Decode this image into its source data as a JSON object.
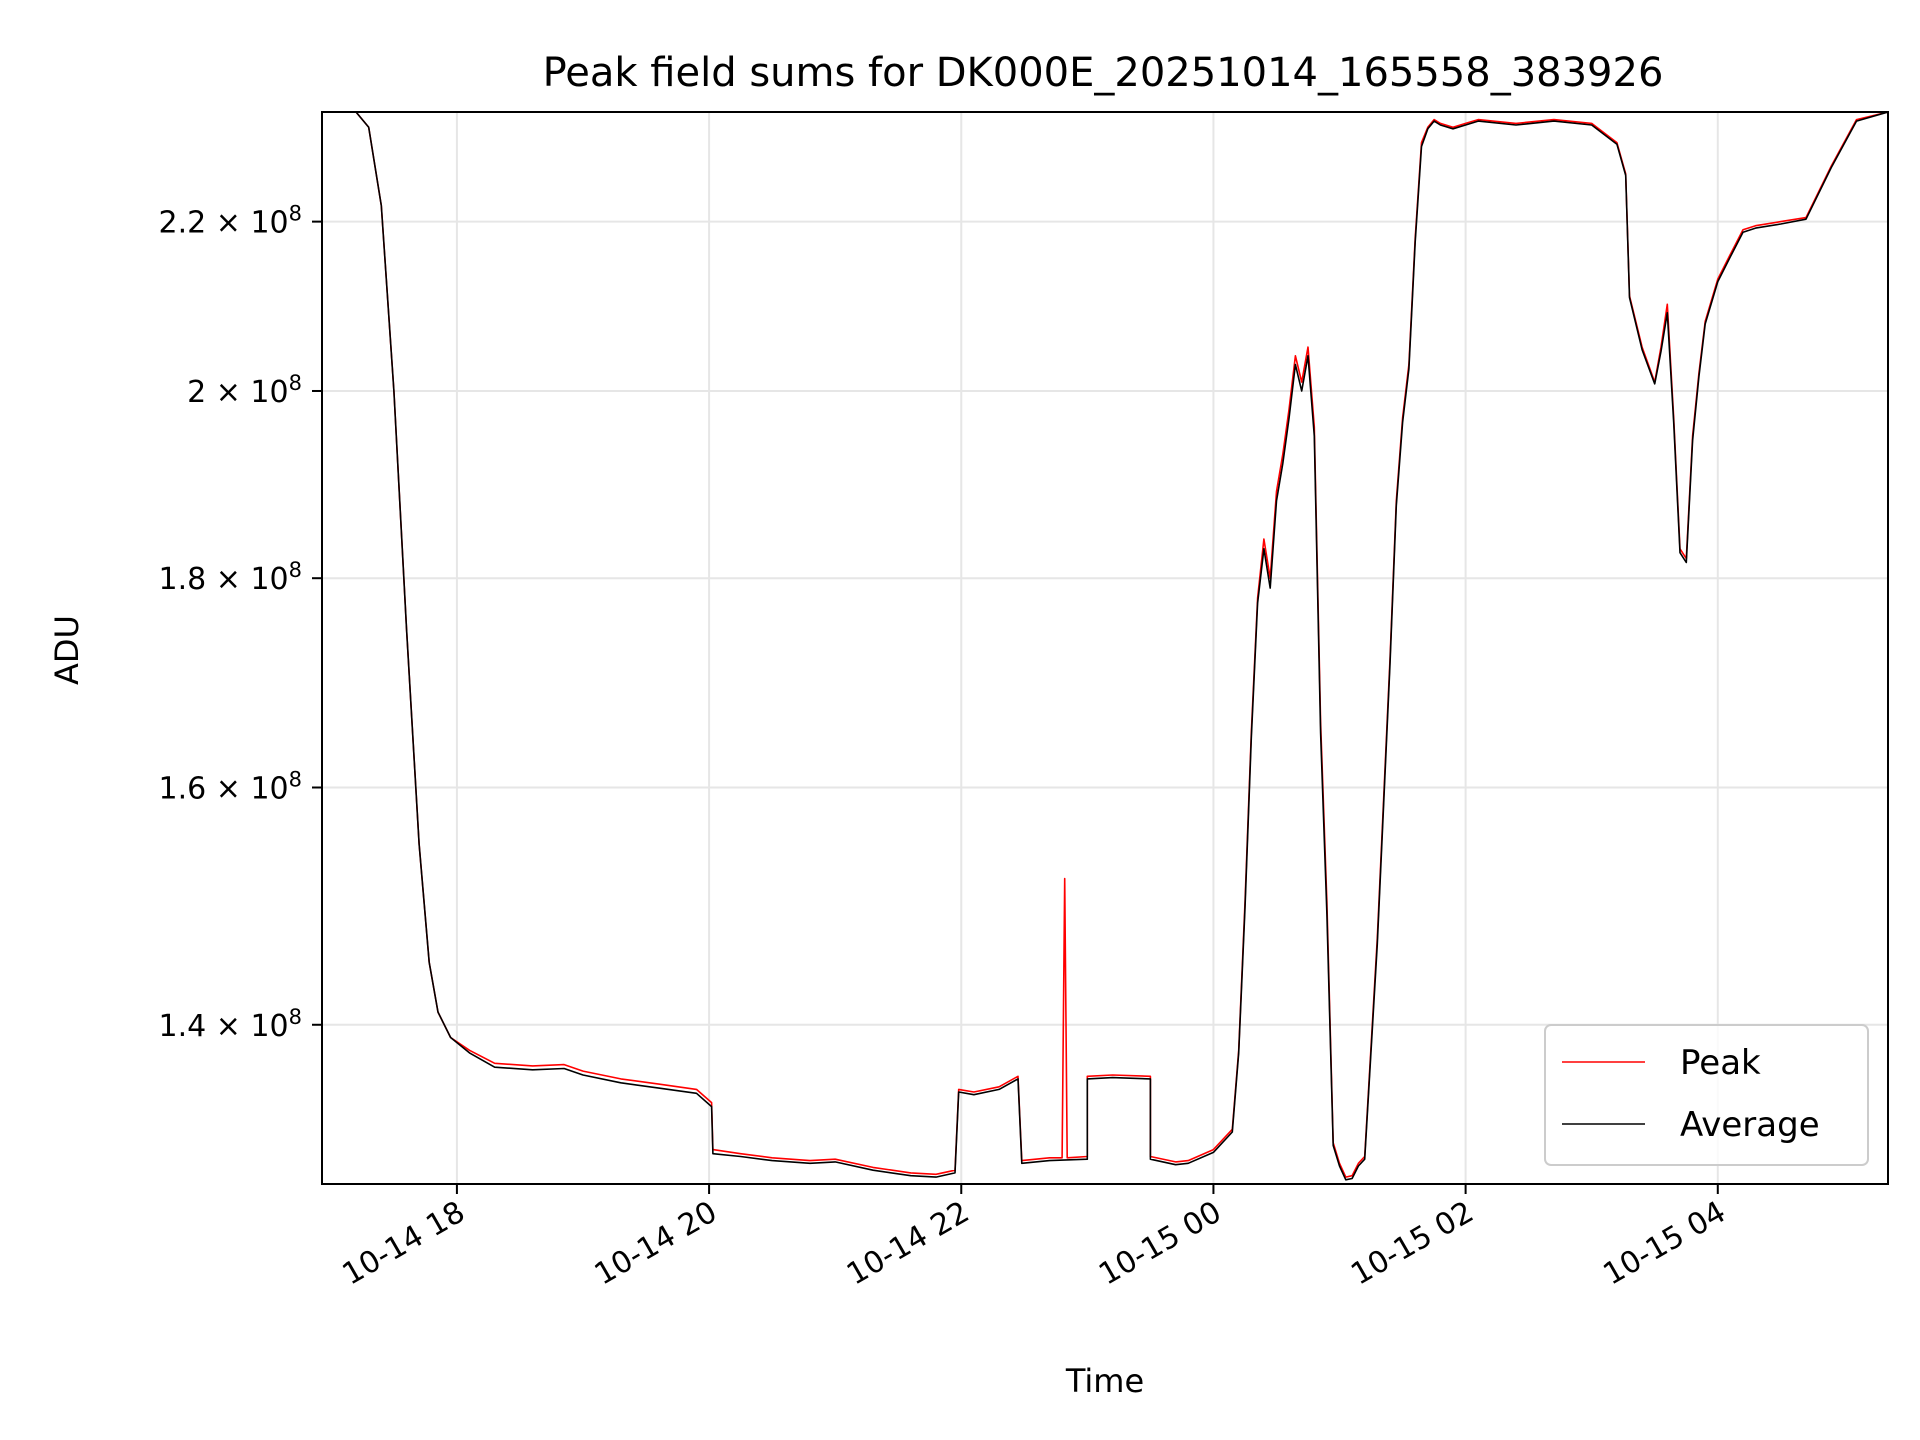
{
  "chart_data": {
    "type": "line",
    "title": "Peak field sums for DK000E_20251014_165558_383926",
    "xlabel": "Time",
    "ylabel": "ADU",
    "yscale": "log",
    "xlim": [
      16.93,
      29.35
    ],
    "ylim": [
      128000000,
      234000000
    ],
    "grid": true,
    "legend_position": "lower right",
    "x_tick_hours": [
      18,
      20,
      22,
      24,
      26,
      28
    ],
    "x_tick_labels": [
      "10-14 18",
      "10-14 20",
      "10-14 22",
      "10-15 00",
      "10-15 02",
      "10-15 04"
    ],
    "y_ticks": [
      140000000,
      160000000,
      180000000,
      200000000,
      220000000
    ],
    "y_tick_labels": [
      {
        "mantissa": "1.4",
        "exponent": "8"
      },
      {
        "mantissa": "1.6",
        "exponent": "8"
      },
      {
        "mantissa": "1.8",
        "exponent": "8"
      },
      {
        "mantissa": "2",
        "exponent": "8"
      },
      {
        "mantissa": "2.2",
        "exponent": "8"
      }
    ],
    "series": [
      {
        "name": "Peak",
        "color": "#ff0000",
        "x": [
          16.93,
          17.2,
          17.3,
          17.4,
          17.5,
          17.6,
          17.7,
          17.78,
          17.85,
          17.95,
          18.1,
          18.3,
          18.6,
          18.85,
          19.0,
          19.3,
          19.6,
          19.9,
          20.02,
          20.03,
          20.25,
          20.5,
          20.8,
          21.0,
          21.3,
          21.6,
          21.8,
          21.95,
          21.98,
          22.1,
          22.3,
          22.45,
          22.48,
          22.7,
          22.8,
          22.82,
          22.84,
          23.0,
          23.0,
          23.2,
          23.5,
          23.5,
          23.7,
          23.8,
          24.0,
          24.15,
          24.2,
          24.25,
          24.3,
          24.35,
          24.4,
          24.45,
          24.5,
          24.55,
          24.6,
          24.65,
          24.7,
          24.75,
          24.8,
          24.85,
          24.9,
          24.95,
          25.0,
          25.05,
          25.1,
          25.15,
          25.2,
          25.3,
          25.4,
          25.45,
          25.5,
          25.55,
          25.6,
          25.65,
          25.7,
          25.75,
          25.8,
          25.9,
          26.0,
          26.1,
          26.4,
          26.7,
          27.0,
          27.2,
          27.27,
          27.3,
          27.4,
          27.5,
          27.55,
          27.6,
          27.65,
          27.7,
          27.75,
          27.8,
          27.85,
          27.9,
          28.0,
          28.1,
          28.2,
          28.3,
          28.5,
          28.7,
          28.9,
          29.1,
          29.35
        ],
        "values": [
          234000000,
          234000000,
          232000000,
          222000000,
          200000000,
          175000000,
          155000000,
          145000000,
          141000000,
          139000000,
          138000000,
          137000000,
          136800000,
          136900000,
          136400000,
          135800000,
          135400000,
          135000000,
          134000000,
          130500000,
          130200000,
          129900000,
          129700000,
          129800000,
          129200000,
          128800000,
          128700000,
          129000000,
          135000000,
          134800000,
          135200000,
          136000000,
          129700000,
          129900000,
          129900000,
          152000000,
          129900000,
          130000000,
          136000000,
          136100000,
          136000000,
          130000000,
          129600000,
          129700000,
          130500000,
          132000000,
          138000000,
          150000000,
          165000000,
          178000000,
          184000000,
          180000000,
          189000000,
          193000000,
          198000000,
          204000000,
          201000000,
          205000000,
          196000000,
          166000000,
          150000000,
          131000000,
          129500000,
          128500000,
          128600000,
          129500000,
          130000000,
          147000000,
          172000000,
          188000000,
          197000000,
          203000000,
          218000000,
          230000000,
          232000000,
          233000000,
          232500000,
          232000000,
          232500000,
          233000000,
          232500000,
          233000000,
          232500000,
          230000000,
          226000000,
          211000000,
          205000000,
          201000000,
          205000000,
          210000000,
          197000000,
          183000000,
          182000000,
          195000000,
          202000000,
          208000000,
          213000000,
          216000000,
          219000000,
          219500000,
          220000000,
          220500000,
          227000000,
          233000000,
          234000000
        ]
      },
      {
        "name": "Average",
        "color": "#000000",
        "x": [
          16.93,
          17.2,
          17.3,
          17.4,
          17.5,
          17.6,
          17.7,
          17.78,
          17.85,
          17.95,
          18.1,
          18.3,
          18.6,
          18.85,
          19.0,
          19.3,
          19.6,
          19.9,
          20.02,
          20.03,
          20.25,
          20.5,
          20.8,
          21.0,
          21.3,
          21.6,
          21.8,
          21.95,
          21.98,
          22.1,
          22.3,
          22.45,
          22.48,
          22.7,
          23.0,
          23.0,
          23.2,
          23.5,
          23.5,
          23.7,
          23.8,
          24.0,
          24.15,
          24.2,
          24.25,
          24.3,
          24.35,
          24.4,
          24.45,
          24.5,
          24.55,
          24.6,
          24.65,
          24.7,
          24.75,
          24.8,
          24.85,
          24.9,
          24.95,
          25.0,
          25.05,
          25.1,
          25.15,
          25.2,
          25.3,
          25.4,
          25.45,
          25.5,
          25.55,
          25.6,
          25.65,
          25.7,
          25.75,
          25.8,
          25.9,
          26.0,
          26.1,
          26.4,
          26.7,
          27.0,
          27.2,
          27.27,
          27.3,
          27.4,
          27.5,
          27.55,
          27.6,
          27.65,
          27.7,
          27.75,
          27.8,
          27.85,
          27.9,
          28.0,
          28.1,
          28.2,
          28.3,
          28.5,
          28.7,
          28.9,
          29.1,
          29.35
        ],
        "values": [
          234000000,
          234000000,
          232000000,
          222000000,
          200000000,
          175000000,
          155000000,
          145000000,
          141000000,
          139000000,
          137800000,
          136700000,
          136500000,
          136600000,
          136100000,
          135500000,
          135100000,
          134700000,
          133700000,
          130200000,
          130000000,
          129700000,
          129500000,
          129600000,
          129000000,
          128600000,
          128500000,
          128800000,
          134800000,
          134600000,
          135000000,
          135800000,
          129500000,
          129700000,
          129800000,
          135800000,
          135900000,
          135800000,
          129800000,
          129400000,
          129500000,
          130300000,
          131800000,
          137800000,
          149500000,
          164500000,
          177500000,
          183000000,
          179000000,
          188000000,
          192000000,
          197000000,
          203000000,
          200000000,
          204000000,
          195000000,
          165000000,
          149000000,
          130800000,
          129300000,
          128300000,
          128400000,
          129300000,
          129800000,
          146500000,
          171500000,
          187500000,
          196500000,
          202500000,
          217500000,
          229500000,
          231800000,
          232800000,
          232300000,
          231800000,
          232300000,
          232800000,
          232300000,
          232800000,
          232300000,
          229800000,
          225800000,
          210800000,
          204700000,
          200800000,
          204500000,
          209000000,
          196500000,
          182600000,
          181600000,
          194500000,
          201600000,
          207700000,
          212700000,
          215700000,
          218700000,
          219200000,
          219700000,
          220300000,
          226800000,
          232800000,
          234000000
        ]
      }
    ]
  }
}
